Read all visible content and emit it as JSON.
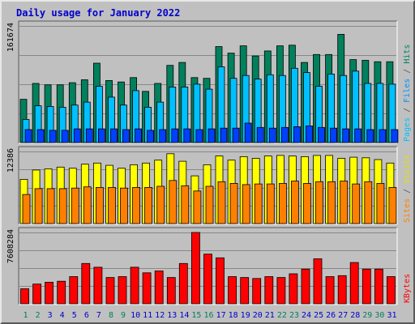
{
  "chart_data": {
    "type": "bar",
    "title": "Daily usage for January 2022",
    "categories": [
      "1",
      "2",
      "3",
      "4",
      "5",
      "6",
      "7",
      "8",
      "9",
      "10",
      "11",
      "12",
      "13",
      "14",
      "15",
      "16",
      "17",
      "18",
      "19",
      "20",
      "21",
      "22",
      "23",
      "24",
      "25",
      "26",
      "27",
      "28",
      "29",
      "30",
      "31"
    ],
    "weekend_days": [
      "1",
      "2",
      "8",
      "9",
      "15",
      "16",
      "22",
      "23",
      "29",
      "30"
    ],
    "colors": {
      "hits": "#00805c",
      "files": "#00c0ff",
      "pages": "#0040ff",
      "visits": "#ffff00",
      "sites": "#ff8000",
      "kbytes": "#ff0000",
      "weekday_label": "#0000cc",
      "weekend_label": "#00805c",
      "grid": "#888888",
      "panel": "#c0c0c0"
    },
    "panels": [
      {
        "id": "hits-files-pages",
        "ymax_label": "161674",
        "ymax": 161674,
        "series": [
          {
            "name": "Hits",
            "color": "#00805c",
            "values": [
              60000,
              82000,
              80000,
              80000,
              83000,
              87000,
              110000,
              86000,
              84000,
              90000,
              71000,
              82000,
              107000,
              111000,
              90000,
              89000,
              133000,
              124000,
              134000,
              120000,
              127000,
              134000,
              135000,
              111000,
              122000,
              122000,
              150000,
              115000,
              114000,
              112000,
              112000
            ]
          },
          {
            "name": "Files",
            "color": "#00c0ff",
            "values": [
              32000,
              51000,
              50000,
              49000,
              52000,
              56000,
              78000,
              63000,
              52000,
              72000,
              49000,
              56000,
              77000,
              77000,
              81000,
              74000,
              105000,
              89000,
              93000,
              88000,
              94000,
              93000,
              103000,
              97000,
              78000,
              95000,
              93000,
              99000,
              82000,
              82000,
              81000
            ]
          },
          {
            "name": "Pages",
            "color": "#0040ff",
            "values": [
              18000,
              18000,
              17000,
              17000,
              19000,
              19000,
              19000,
              19000,
              18000,
              19000,
              17000,
              18000,
              19000,
              19000,
              18000,
              19000,
              20000,
              20000,
              27000,
              21000,
              20000,
              21000,
              22000,
              23000,
              21000,
              20000,
              19000,
              19000,
              18000,
              18000,
              18000
            ]
          }
        ],
        "right_label": [
          {
            "text": "Pages",
            "color": "#00c0ff"
          },
          {
            "text": " / ",
            "color": "#555555"
          },
          {
            "text": "Files",
            "color": "#0090ff"
          },
          {
            "text": " / ",
            "color": "#555555"
          },
          {
            "text": "Hits",
            "color": "#00805c"
          }
        ]
      },
      {
        "id": "visits-sites",
        "ymax_label": "12386",
        "ymax": 12386,
        "series": [
          {
            "name": "Visits",
            "color": "#ffff00",
            "values": [
              7600,
              9200,
              9400,
              9700,
              9500,
              10200,
              10400,
              10000,
              9500,
              10100,
              10400,
              10900,
              12000,
              10700,
              8200,
              10100,
              11600,
              10900,
              11500,
              11200,
              11600,
              11700,
              11600,
              11500,
              11700,
              11700,
              11200,
              11400,
              11300,
              11000,
              10400
            ]
          },
          {
            "name": "Sites",
            "color": "#ff8000",
            "values": [
              5000,
              6000,
              6000,
              6000,
              6100,
              6300,
              6200,
              6200,
              6100,
              6200,
              6200,
              6400,
              7400,
              6500,
              5600,
              6400,
              7200,
              6900,
              6700,
              6800,
              6800,
              6900,
              7300,
              6900,
              7200,
              7200,
              7300,
              6800,
              7200,
              6900,
              6200
            ]
          }
        ],
        "right_label": [
          {
            "text": "Sites",
            "color": "#ff8000"
          },
          {
            "text": " / ",
            "color": "#555555"
          },
          {
            "text": "Visits",
            "color": "#e0e000"
          }
        ]
      },
      {
        "id": "kbytes",
        "ymax_label": "7608284",
        "ymax": 7608284,
        "series": [
          {
            "name": "KBytes",
            "color": "#ff0000",
            "values": [
              1600000,
              2100000,
              2300000,
              2400000,
              2900000,
              4300000,
              3900000,
              2800000,
              2900000,
              3900000,
              3300000,
              3500000,
              2800000,
              4300000,
              7608284,
              5300000,
              4900000,
              2900000,
              2800000,
              2700000,
              2900000,
              2800000,
              3200000,
              3700000,
              4800000,
              2900000,
              3000000,
              4400000,
              3700000,
              3700000,
              2900000
            ]
          }
        ],
        "right_label": [
          {
            "text": "KBytes",
            "color": "#ff0000"
          }
        ]
      }
    ],
    "grid": true,
    "legend": "right-vertical"
  }
}
